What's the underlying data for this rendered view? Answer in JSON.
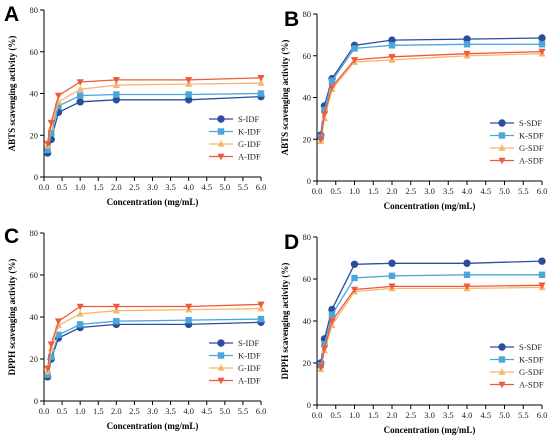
{
  "chart_data": [
    {
      "panel": "A",
      "type": "line",
      "ylabel": "ABTS scavenging activity (%)",
      "xlabel": "Concentration  (mg/mL)",
      "xlim": [
        0,
        6.0
      ],
      "ylim": [
        0,
        80
      ],
      "xticks": [
        "0.0",
        "0.5",
        "1.0",
        "1.5",
        "2.0",
        "2.5",
        "3.0",
        "3.5",
        "4.0",
        "4.5",
        "5.0",
        "5.5",
        "6.0"
      ],
      "yticks": [
        "0",
        "20",
        "40",
        "60",
        "80"
      ],
      "legend_position": "bottom-right",
      "x": [
        0.1,
        0.2,
        0.4,
        1.0,
        2.0,
        4.0,
        6.0
      ],
      "series": [
        {
          "name": "S-IDF",
          "color": "#2a4e9c",
          "marker": "circle",
          "values": [
            11.5,
            18,
            31,
            36,
            37,
            37,
            38.5
          ]
        },
        {
          "name": "K-IDF",
          "color": "#4ba6d9",
          "marker": "square",
          "values": [
            13,
            21,
            34,
            39,
            39.5,
            39.5,
            40
          ]
        },
        {
          "name": "G-IDF",
          "color": "#f5b86e",
          "marker": "triangle-up",
          "values": [
            15,
            24,
            36,
            42,
            44,
            44.5,
            45
          ]
        },
        {
          "name": "A-IDF",
          "color": "#ef5a3c",
          "marker": "triangle-down",
          "values": [
            16,
            26,
            39,
            45.5,
            46.5,
            46.5,
            47.5
          ]
        }
      ]
    },
    {
      "panel": "B",
      "type": "line",
      "ylabel": "ABTS scavenging activity (%)",
      "xlabel": "Concentration  (mg/mL)",
      "xlim": [
        0,
        6.0
      ],
      "ylim": [
        0,
        80
      ],
      "xticks": [
        "0.0",
        "0.5",
        "1.0",
        "1.5",
        "2.0",
        "2.5",
        "3.0",
        "3.5",
        "4.0",
        "4.5",
        "5.0",
        "5.5",
        "6.0"
      ],
      "yticks": [
        "0",
        "20",
        "40",
        "60",
        "80"
      ],
      "legend_position": "bottom-right",
      "x": [
        0.1,
        0.2,
        0.4,
        1.0,
        2.0,
        4.0,
        6.0
      ],
      "series": [
        {
          "name": "S-SDF",
          "color": "#2a4e9c",
          "marker": "circle",
          "values": [
            22,
            36,
            49,
            65,
            67.5,
            68,
            68.5
          ]
        },
        {
          "name": "K-SDF",
          "color": "#4ba6d9",
          "marker": "square",
          "values": [
            21,
            34,
            48,
            63.5,
            65,
            65.5,
            65.5
          ]
        },
        {
          "name": "G-SDF",
          "color": "#f5b86e",
          "marker": "triangle-up",
          "values": [
            19,
            30,
            44,
            57,
            58,
            60,
            61
          ]
        },
        {
          "name": "A-SDF",
          "color": "#ef5a3c",
          "marker": "triangle-down",
          "values": [
            20,
            32,
            45,
            58,
            59.5,
            61,
            62
          ]
        }
      ]
    },
    {
      "panel": "C",
      "type": "line",
      "ylabel": "DPPH scavenging activity (%)",
      "xlabel": "Concentration  (mg/mL)",
      "xlim": [
        0,
        6.0
      ],
      "ylim": [
        0,
        80
      ],
      "xticks": [
        "0.0",
        "0.5",
        "1.0",
        "1.5",
        "2.0",
        "2.5",
        "3.0",
        "3.5",
        "4.0",
        "4.5",
        "5.0",
        "5.5",
        "6.0"
      ],
      "yticks": [
        "0",
        "20",
        "40",
        "60",
        "80"
      ],
      "legend_position": "bottom-right",
      "x": [
        0.1,
        0.2,
        0.4,
        1.0,
        2.0,
        4.0,
        6.0
      ],
      "series": [
        {
          "name": "S-IDF",
          "color": "#2a4e9c",
          "marker": "circle",
          "values": [
            11.5,
            20,
            30,
            35,
            36.5,
            36.5,
            37.5
          ]
        },
        {
          "name": "K-IDF",
          "color": "#4ba6d9",
          "marker": "square",
          "values": [
            12.5,
            21,
            31.5,
            36.5,
            38,
            38.5,
            39
          ]
        },
        {
          "name": "G-IDF",
          "color": "#f5b86e",
          "marker": "triangle-up",
          "values": [
            14,
            25,
            36,
            41.5,
            43,
            43.5,
            44
          ]
        },
        {
          "name": "A-IDF",
          "color": "#ef5a3c",
          "marker": "triangle-down",
          "values": [
            15.5,
            27,
            38,
            45,
            45,
            45,
            46
          ]
        }
      ]
    },
    {
      "panel": "D",
      "type": "line",
      "ylabel": "DPPH scavenging activity (%)",
      "xlabel": "Concentration  (mg/mL)",
      "xlim": [
        0,
        6.0
      ],
      "ylim": [
        0,
        80
      ],
      "xticks": [
        "0.0",
        "0.5",
        "1.0",
        "1.5",
        "2.0",
        "2.5",
        "3.0",
        "3.5",
        "4.0",
        "4.5",
        "5.0",
        "5.5",
        "6.0"
      ],
      "yticks": [
        "0",
        "20",
        "40",
        "60",
        "80"
      ],
      "legend_position": "bottom-right",
      "x": [
        0.1,
        0.2,
        0.4,
        1.0,
        2.0,
        4.0,
        6.0
      ],
      "series": [
        {
          "name": "S-SDF",
          "color": "#2a4e9c",
          "marker": "circle",
          "values": [
            20,
            31.5,
            45.5,
            67,
            67.5,
            67.5,
            68.5
          ]
        },
        {
          "name": "K-SDF",
          "color": "#4ba6d9",
          "marker": "square",
          "values": [
            19,
            29,
            43,
            60.5,
            61.5,
            62,
            62
          ]
        },
        {
          "name": "G-SDF",
          "color": "#f5b86e",
          "marker": "triangle-up",
          "values": [
            17,
            26,
            38,
            54,
            55.5,
            55.5,
            56
          ]
        },
        {
          "name": "A-SDF",
          "color": "#ef5a3c",
          "marker": "triangle-down",
          "values": [
            18,
            27,
            40,
            55,
            56.5,
            56.5,
            57
          ]
        }
      ]
    }
  ]
}
